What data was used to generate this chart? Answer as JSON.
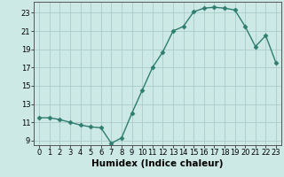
{
  "x": [
    0,
    1,
    2,
    3,
    4,
    5,
    6,
    7,
    8,
    9,
    10,
    11,
    12,
    13,
    14,
    15,
    16,
    17,
    18,
    19,
    20,
    21,
    22,
    23
  ],
  "y": [
    11.5,
    11.5,
    11.3,
    11.0,
    10.7,
    10.5,
    10.4,
    8.7,
    9.3,
    12.0,
    14.5,
    17.0,
    18.7,
    21.0,
    21.5,
    23.1,
    23.5,
    23.6,
    23.5,
    23.3,
    21.5,
    19.3,
    20.5,
    17.5
  ],
  "line_color": "#2e7d6e",
  "marker": "D",
  "marker_size": 2.5,
  "bg_color": "#cde9e5",
  "grid_color": "#aaccc8",
  "xlabel": "Humidex (Indice chaleur)",
  "xlabel_fontsize": 7.5,
  "tick_fontsize": 6,
  "ylim": [
    8.5,
    24.2
  ],
  "xlim": [
    -0.5,
    23.5
  ],
  "yticks": [
    9,
    11,
    13,
    15,
    17,
    19,
    21,
    23
  ],
  "xticks": [
    0,
    1,
    2,
    3,
    4,
    5,
    6,
    7,
    8,
    9,
    10,
    11,
    12,
    13,
    14,
    15,
    16,
    17,
    18,
    19,
    20,
    21,
    22,
    23
  ],
  "line_width": 1.0
}
